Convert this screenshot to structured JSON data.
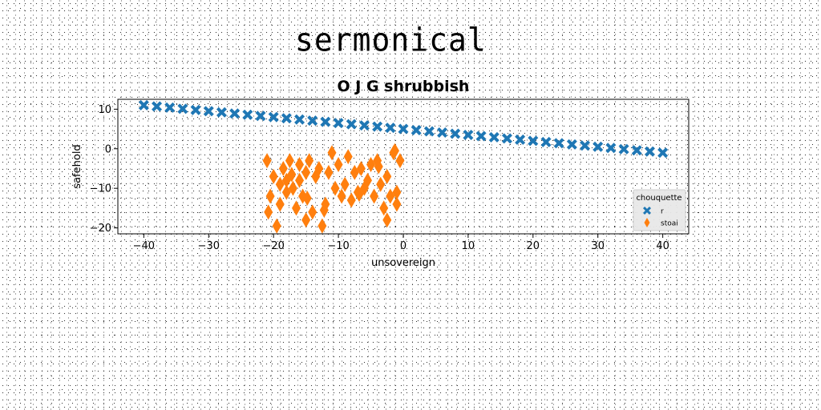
{
  "page_heading": "sermonical",
  "chart_data": {
    "type": "scatter",
    "title": "O J G shrubbish",
    "xlabel": "unsovereign",
    "ylabel": "safehold",
    "xlim": [
      -44,
      44
    ],
    "ylim": [
      -21.5,
      12.5
    ],
    "xticks": [
      -40,
      -30,
      -20,
      -10,
      0,
      10,
      20,
      30,
      40
    ],
    "yticks": [
      10,
      0,
      -10,
      -20
    ],
    "grid": false,
    "legend": {
      "title": "chouquette",
      "placement": "lower-right"
    },
    "series": [
      {
        "name": "r",
        "marker": "X",
        "color": "#1f77b4",
        "x": [
          -40.0,
          -38.0,
          -36.0,
          -34.0,
          -32.0,
          -30.0,
          -28.0,
          -26.0,
          -24.0,
          -22.0,
          -20.0,
          -18.0,
          -16.0,
          -14.0,
          -12.0,
          -10.0,
          -8.0,
          -6.0,
          -4.0,
          -2.0,
          0.0,
          2.0,
          4.0,
          6.0,
          8.0,
          10.0,
          12.0,
          14.0,
          16.0,
          18.0,
          20.0,
          22.0,
          24.0,
          26.0,
          28.0,
          30.0,
          32.0,
          34.0,
          36.0,
          38.0,
          40.0
        ],
        "y": [
          11.0,
          10.7,
          10.4,
          10.1,
          9.8,
          9.5,
          9.2,
          8.9,
          8.6,
          8.3,
          8.0,
          7.7,
          7.4,
          7.1,
          6.8,
          6.5,
          6.2,
          5.9,
          5.6,
          5.3,
          5.0,
          4.7,
          4.4,
          4.1,
          3.8,
          3.5,
          3.2,
          2.9,
          2.6,
          2.3,
          2.0,
          1.7,
          1.4,
          1.1,
          0.8,
          0.5,
          0.2,
          -0.1,
          -0.4,
          -0.7,
          -1.0
        ]
      },
      {
        "name": "stoai",
        "marker": "d",
        "color": "#ff7f0e",
        "x": [
          -21,
          -20.5,
          -20,
          -19.5,
          -19,
          -19,
          -18.5,
          -18,
          -18,
          -17.5,
          -17,
          -16.5,
          -16,
          -16,
          -15.5,
          -15,
          -15,
          -14.5,
          -14,
          -13.5,
          -13,
          -12.5,
          -12,
          -11.5,
          -11,
          -10.5,
          -10,
          -9.5,
          -9,
          -8.5,
          -8,
          -7.5,
          -7,
          -6.5,
          -6,
          -5.5,
          -5,
          -4.5,
          -4,
          -3.5,
          -3,
          -2.5,
          -2.5,
          -2,
          -1.5,
          -1,
          -1,
          -0.5,
          -20.8,
          -17.2,
          -14.8,
          -12.2,
          -6.8,
          -3.8,
          -1.3
        ],
        "y": [
          -3,
          -12,
          -7,
          -19.5,
          -14,
          -9,
          -5,
          -11,
          -8,
          -3,
          -10,
          -15,
          -4,
          -8,
          -12,
          -6,
          -18,
          -3,
          -16,
          -7,
          -5,
          -19.5,
          -14,
          -6,
          -1,
          -10,
          -4,
          -12,
          -9,
          -2,
          -13,
          -6,
          -11,
          -5,
          -10,
          -8,
          -4,
          -12,
          -3,
          -9,
          -15,
          -7,
          -18,
          -12,
          -1,
          -11,
          -14,
          -3,
          -16,
          -6.5,
          -12.5,
          -15.5,
          -11.5,
          -4.5,
          -0.5
        ]
      }
    ]
  }
}
